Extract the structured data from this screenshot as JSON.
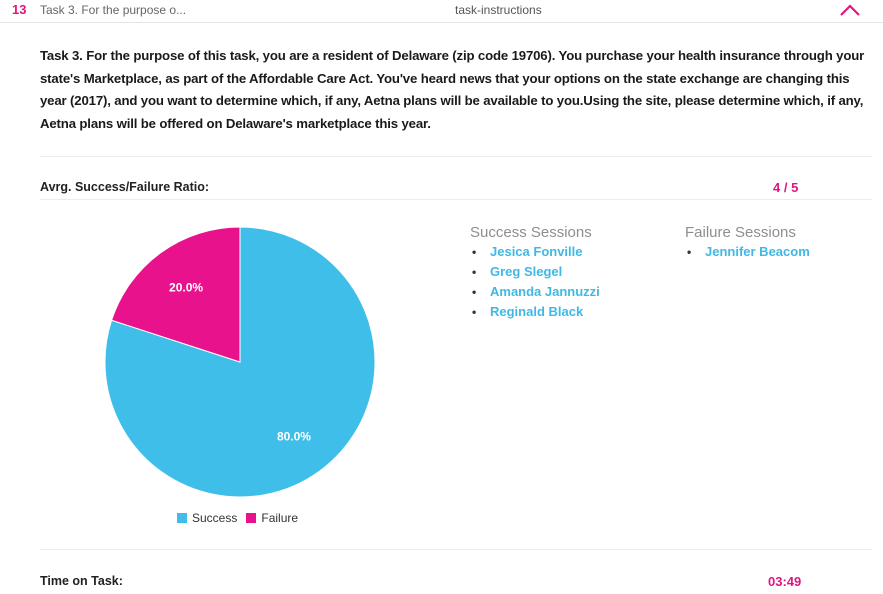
{
  "header": {
    "task_number": "13",
    "task_short": "Task 3. For the purpose o...",
    "task_type": "task-instructions",
    "collapse_icon": "chevron-up-icon"
  },
  "description": "Task 3. For the purpose of this task, you are a resident of Delaware (zip code 19706). You purchase your health insurance through your state's Marketplace, as part of the Affordable Care Act. You've heard news that your options on the state exchange are changing this year (2017), and you want to determine which, if any, Aetna plans will be available to you.Using the site, please determine which, if any, Aetna plans will be offered on Delaware's marketplace this year.",
  "ratio": {
    "label": "Avrg. Success/Failure Ratio:",
    "value": "4 / 5"
  },
  "success_sessions": {
    "title": "Success Sessions",
    "items": [
      "Jesica Fonville",
      "Greg Slegel",
      "Amanda Jannuzzi",
      "Reginald Black"
    ]
  },
  "failure_sessions": {
    "title": "Failure Sessions",
    "items": [
      "Jennifer Beacom"
    ]
  },
  "time": {
    "label": "Time on Task:",
    "value": "03:49"
  },
  "colors": {
    "success": "#3fbeea",
    "failure": "#e8128c",
    "accent": "#e0157f",
    "link": "#3fb8e6"
  },
  "chart_data": {
    "type": "pie",
    "labels": [
      "Success",
      "Failure"
    ],
    "values": [
      80.0,
      20.0
    ],
    "data_labels": [
      "80.0%",
      "20.0%"
    ],
    "legend": [
      "Success",
      "Failure"
    ],
    "legend_position": "bottom"
  }
}
